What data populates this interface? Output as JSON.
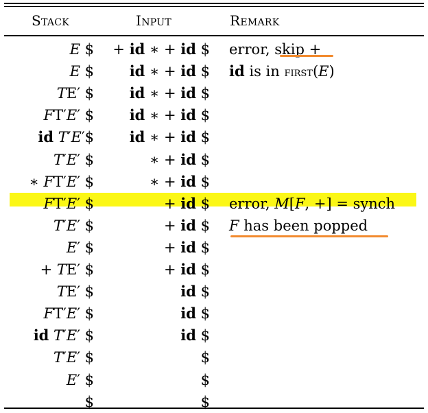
{
  "headers": {
    "stack": "Stack",
    "input": "Input",
    "remark": "Remark"
  },
  "highlight_color": "#fbf716",
  "annotation_color": "#f28a2e",
  "rows": [
    {
      "stack": "E $",
      "input": "+ id ∗ + id $",
      "remark": "error, skip +"
    },
    {
      "stack": "E $",
      "input": "id ∗ + id $",
      "remark": "id is in FIRST(E)"
    },
    {
      "stack": "TE′ $",
      "input": "id ∗ + id $",
      "remark": ""
    },
    {
      "stack": "FT′E′ $",
      "input": "id ∗ + id $",
      "remark": ""
    },
    {
      "stack": "id T′E′$",
      "input": "id ∗ + id $",
      "remark": ""
    },
    {
      "stack": "T′E′ $",
      "input": "∗ + id $",
      "remark": ""
    },
    {
      "stack": "∗ FT′E′ $",
      "input": "∗ + id $",
      "remark": ""
    },
    {
      "stack": "FT′E′ $",
      "input": "+ id $",
      "remark": "error, M[F, +] = synch"
    },
    {
      "stack": "T′E′ $",
      "input": "+ id $",
      "remark": "F has been popped"
    },
    {
      "stack": "E′ $",
      "input": "+ id $",
      "remark": ""
    },
    {
      "stack": "+ TE′ $",
      "input": "+ id $",
      "remark": ""
    },
    {
      "stack": "TE′ $",
      "input": "id $",
      "remark": ""
    },
    {
      "stack": "FT′E′ $",
      "input": "id $",
      "remark": ""
    },
    {
      "stack": "id T′E′ $",
      "input": "id $",
      "remark": ""
    },
    {
      "stack": "T′E′ $",
      "input": "$",
      "remark": ""
    },
    {
      "stack": "E′ $",
      "input": "$",
      "remark": ""
    },
    {
      "stack": "$",
      "input": "$",
      "remark": ""
    }
  ]
}
